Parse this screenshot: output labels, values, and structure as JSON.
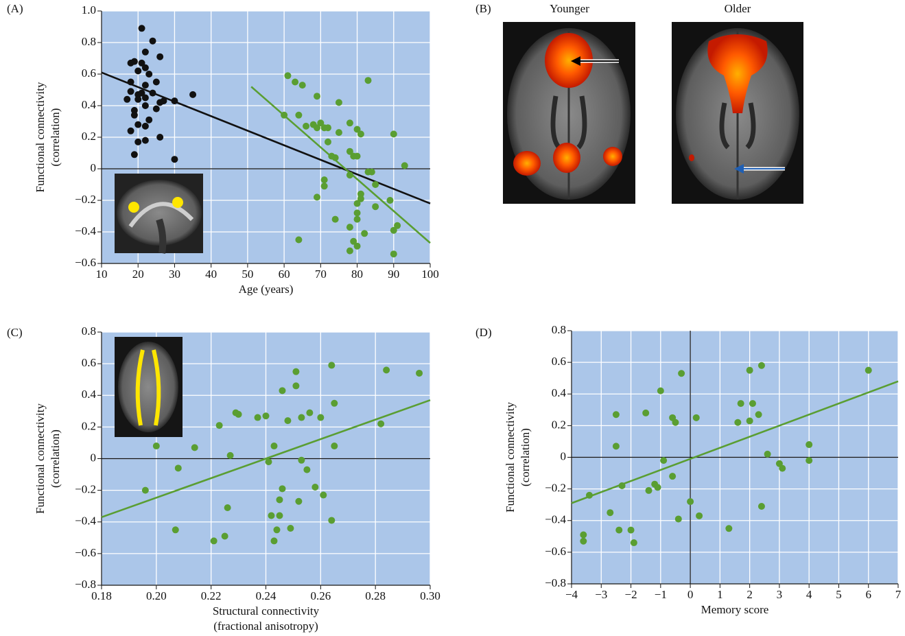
{
  "chart_data": [
    {
      "type": "scatter",
      "panel_label": "(A)",
      "xlabel": [
        "Age (years)"
      ],
      "ylabel": [
        "Functional connectivity",
        "(correlation)"
      ],
      "xlim": [
        10,
        100
      ],
      "xticks": [
        10,
        20,
        30,
        40,
        50,
        60,
        70,
        80,
        90,
        100
      ],
      "ylim": [
        -0.6,
        1.0
      ],
      "yticks": [
        {
          "value": -0.6,
          "label": "−0.6"
        },
        {
          "value": -0.4,
          "label": "−0.4"
        },
        {
          "value": -0.2,
          "label": "−0.2"
        },
        0,
        0.2,
        0.4,
        0.6,
        0.8,
        {
          "value": 1.0,
          "label": "1.0"
        }
      ],
      "grid": true,
      "zero_lines": [
        "y"
      ],
      "series": [
        {
          "color": "#111111",
          "x": [
            21,
            24,
            26,
            22,
            18,
            19,
            21,
            22,
            20,
            23,
            18,
            22,
            25,
            18,
            20,
            21,
            24,
            22,
            17,
            20,
            26,
            27,
            30,
            35,
            19,
            22,
            25,
            19,
            23,
            20,
            22,
            18,
            20,
            22,
            26,
            19,
            30
          ],
          "y": [
            0.89,
            0.81,
            0.71,
            0.74,
            0.67,
            0.68,
            0.67,
            0.64,
            0.62,
            0.6,
            0.55,
            0.53,
            0.55,
            0.49,
            0.47,
            0.48,
            0.48,
            0.45,
            0.44,
            0.44,
            0.42,
            0.43,
            0.43,
            0.47,
            0.37,
            0.4,
            0.38,
            0.34,
            0.31,
            0.28,
            0.27,
            0.24,
            0.17,
            0.18,
            0.2,
            0.09,
            0.06
          ]
        },
        {
          "color": "#5a9e32",
          "x": [
            61,
            63,
            65,
            69,
            75,
            83,
            60,
            64,
            66,
            68,
            69,
            70,
            71,
            72,
            72,
            75,
            78,
            80,
            81,
            90,
            78,
            79,
            80,
            73,
            74,
            83,
            84,
            93,
            71,
            71,
            69,
            78,
            81,
            81,
            80,
            85,
            89,
            80,
            80,
            74,
            78,
            82,
            85,
            90,
            91,
            79,
            80,
            78,
            90,
            64
          ],
          "y": [
            0.59,
            0.55,
            0.53,
            0.46,
            0.42,
            0.56,
            0.34,
            0.34,
            0.27,
            0.28,
            0.26,
            0.29,
            0.26,
            0.26,
            0.17,
            0.23,
            0.29,
            0.25,
            0.22,
            0.22,
            0.11,
            0.08,
            0.08,
            0.08,
            0.07,
            -0.02,
            -0.02,
            0.02,
            -0.07,
            -0.11,
            -0.18,
            -0.04,
            -0.16,
            -0.19,
            -0.22,
            -0.1,
            -0.2,
            -0.28,
            -0.32,
            -0.32,
            -0.37,
            -0.41,
            -0.24,
            -0.39,
            -0.36,
            -0.46,
            -0.49,
            -0.52,
            -0.54,
            -0.45
          ]
        }
      ],
      "fit_lines": [
        {
          "color": "#111111",
          "x": [
            10,
            100
          ],
          "y": [
            0.61,
            -0.22
          ]
        },
        {
          "color": "#5a9e32",
          "x": [
            51,
            100
          ],
          "y": [
            0.52,
            -0.47
          ]
        }
      ]
    },
    {
      "type": "scatter",
      "panel_label": "(C)",
      "xlabel": [
        "Structural connectivity",
        "(fractional anisotropy)"
      ],
      "ylabel": [
        "Functional connectivity",
        "(correlation)"
      ],
      "xlim": [
        0.18,
        0.3
      ],
      "xticks": [
        0.18,
        {
          "value": 0.2,
          "label": "0.20"
        },
        0.22,
        0.24,
        0.26,
        0.28,
        {
          "value": 0.3,
          "label": "0.30"
        }
      ],
      "ylim": [
        -0.8,
        0.8
      ],
      "yticks": [
        {
          "value": -0.8,
          "label": "−0.8"
        },
        {
          "value": -0.6,
          "label": "−0.6"
        },
        {
          "value": -0.4,
          "label": "−0.4"
        },
        {
          "value": -0.2,
          "label": "−0.2"
        },
        0,
        0.2,
        0.4,
        0.6,
        0.8
      ],
      "grid": true,
      "zero_lines": [
        "y"
      ],
      "series": [
        {
          "color": "#5a9e32",
          "x": [
            0.196,
            0.2,
            0.207,
            0.208,
            0.214,
            0.221,
            0.223,
            0.225,
            0.226,
            0.227,
            0.229,
            0.23,
            0.237,
            0.24,
            0.241,
            0.242,
            0.243,
            0.243,
            0.244,
            0.245,
            0.245,
            0.246,
            0.246,
            0.248,
            0.249,
            0.251,
            0.251,
            0.252,
            0.253,
            0.253,
            0.255,
            0.256,
            0.258,
            0.26,
            0.261,
            0.264,
            0.264,
            0.265,
            0.265,
            0.282,
            0.284,
            0.296
          ],
          "y": [
            -0.2,
            0.08,
            -0.45,
            -0.06,
            0.07,
            -0.52,
            0.21,
            -0.49,
            -0.31,
            0.02,
            0.29,
            0.28,
            0.26,
            0.27,
            -0.02,
            -0.36,
            -0.52,
            0.08,
            -0.45,
            -0.26,
            -0.36,
            0.43,
            -0.19,
            0.24,
            -0.44,
            0.46,
            0.55,
            -0.27,
            0.26,
            -0.01,
            -0.07,
            0.29,
            -0.18,
            0.26,
            -0.23,
            0.59,
            -0.39,
            0.35,
            0.08,
            0.22,
            0.56,
            0.54
          ]
        }
      ],
      "fit_lines": [
        {
          "color": "#5a9e32",
          "x": [
            0.18,
            0.3
          ],
          "y": [
            -0.37,
            0.37
          ]
        }
      ]
    },
    {
      "type": "scatter",
      "panel_label": "(D)",
      "xlabel": [
        "Memory score"
      ],
      "ylabel": [
        "Functional connectivity",
        "(correlation)"
      ],
      "xlim": [
        -4,
        7
      ],
      "xticks": [
        {
          "value": -4,
          "label": "−4"
        },
        {
          "value": -3,
          "label": "−3"
        },
        {
          "value": -2,
          "label": "−2"
        },
        {
          "value": -1,
          "label": "−1"
        },
        0,
        1,
        2,
        3,
        4,
        5,
        6,
        7
      ],
      "ylim": [
        -0.8,
        0.8
      ],
      "yticks": [
        {
          "value": -0.8,
          "label": "−0.8"
        },
        {
          "value": -0.6,
          "label": "−0.6"
        },
        {
          "value": -0.4,
          "label": "−0.4"
        },
        {
          "value": -0.2,
          "label": "−0.2"
        },
        0,
        0.2,
        0.4,
        0.6,
        0.8
      ],
      "grid": true,
      "zero_lines": [
        "x",
        "y"
      ],
      "series": [
        {
          "color": "#5a9e32",
          "x": [
            -3.6,
            -3.6,
            -3.4,
            -2.7,
            -2.5,
            -2.5,
            -2.4,
            -2.3,
            -2.0,
            -1.9,
            -1.5,
            -1.4,
            -1.2,
            -1.1,
            -1.0,
            -0.9,
            -0.6,
            -0.6,
            -0.5,
            -0.4,
            -0.3,
            0.0,
            0.2,
            0.3,
            1.3,
            1.6,
            1.7,
            2.0,
            2.0,
            2.1,
            2.3,
            2.4,
            2.4,
            2.6,
            3.0,
            3.1,
            4.0,
            4.0,
            6.0
          ],
          "y": [
            -0.49,
            -0.53,
            -0.24,
            -0.35,
            0.27,
            0.07,
            -0.46,
            -0.18,
            -0.46,
            -0.54,
            0.28,
            -0.21,
            -0.17,
            -0.19,
            0.42,
            -0.02,
            0.25,
            -0.12,
            0.22,
            -0.39,
            0.53,
            -0.28,
            0.25,
            -0.37,
            -0.45,
            0.22,
            0.34,
            0.55,
            0.23,
            0.34,
            0.27,
            0.58,
            -0.31,
            0.02,
            -0.04,
            -0.07,
            0.08,
            -0.02,
            0.55
          ]
        }
      ],
      "fit_lines": [
        {
          "color": "#5a9e32",
          "x": [
            -4,
            7
          ],
          "y": [
            -0.29,
            0.48
          ]
        }
      ]
    }
  ],
  "panel_b": {
    "label": "(B)",
    "titles": [
      "Younger",
      "Older"
    ]
  }
}
